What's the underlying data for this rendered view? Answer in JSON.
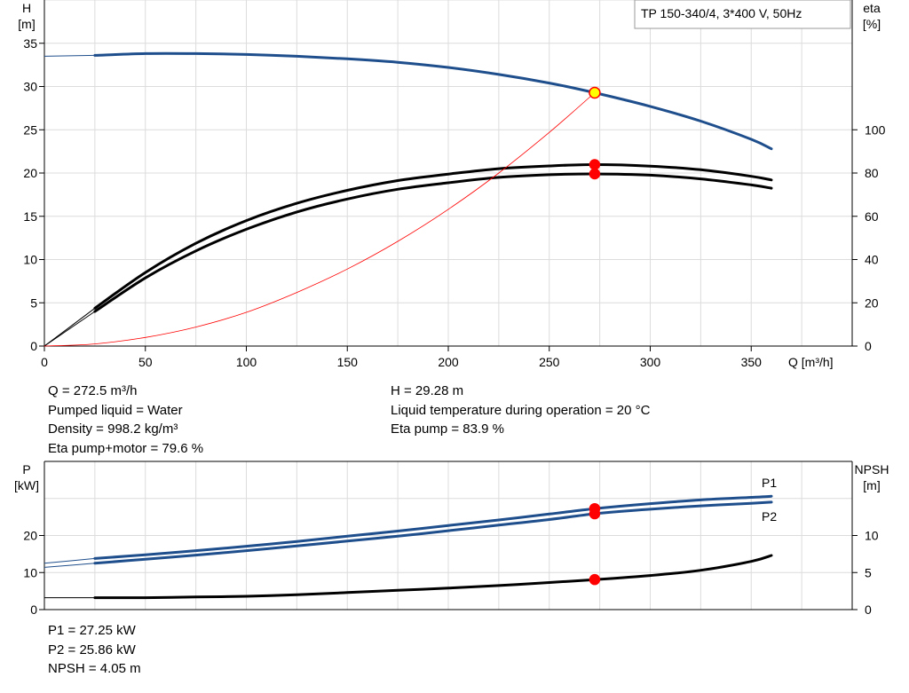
{
  "chart_data": [
    {
      "type": "line",
      "title": "TP 150-340/4, 3*400 V, 50Hz",
      "xlabel": "Q [m³/h]",
      "xlim": [
        0,
        400
      ],
      "x_ticks": [
        0,
        50,
        100,
        150,
        200,
        250,
        300,
        350
      ],
      "y_axes": [
        {
          "label": [
            "H",
            "[m]"
          ],
          "side": "left",
          "ylim": [
            0,
            40
          ],
          "ticks": [
            0,
            5,
            10,
            15,
            20,
            25,
            30,
            35
          ]
        },
        {
          "label": [
            "eta",
            "[%]"
          ],
          "side": "right",
          "ylim": [
            0,
            160
          ],
          "ticks": [
            0,
            20,
            40,
            60,
            80,
            100
          ]
        }
      ],
      "grid": true,
      "series": [
        {
          "axis": "left",
          "color": "#1f4e8c",
          "x": [
            0,
            25,
            50,
            75,
            100,
            125,
            150,
            175,
            200,
            225,
            250,
            272.5,
            300,
            325,
            350,
            360
          ],
          "y": [
            33.5,
            33.6,
            33.8,
            33.8,
            33.7,
            33.5,
            33.2,
            32.8,
            32.2,
            31.4,
            30.4,
            29.28,
            27.7,
            26.0,
            23.9,
            22.8
          ]
        },
        {
          "axis": "right",
          "color": "#000000",
          "x": [
            0,
            25,
            50,
            75,
            100,
            125,
            150,
            175,
            200,
            225,
            250,
            272.5,
            300,
            325,
            350,
            360
          ],
          "y": [
            0,
            17.5,
            34,
            47.5,
            58,
            66,
            72,
            76.5,
            79.5,
            82,
            83.3,
            83.9,
            83.2,
            81.5,
            78.5,
            76.8
          ]
        },
        {
          "axis": "right",
          "color": "#000000",
          "x": [
            0,
            25,
            50,
            75,
            100,
            125,
            150,
            175,
            200,
            225,
            250,
            272.5,
            300,
            325,
            350,
            360
          ],
          "y": [
            0,
            16,
            31.5,
            44,
            54,
            62,
            68,
            72.5,
            75.5,
            78,
            79.2,
            79.6,
            79,
            77.3,
            74.5,
            73
          ]
        },
        {
          "axis": "left",
          "color": "#ff0000",
          "x": [
            0,
            25,
            50,
            75,
            100,
            125,
            150,
            175,
            200,
            225,
            250,
            272.5
          ],
          "y": [
            0,
            0.25,
            1.0,
            2.2,
            3.9,
            6.2,
            8.9,
            12.1,
            15.8,
            20.0,
            24.7,
            29.28
          ]
        }
      ],
      "operating_points": [
        {
          "axis": "left",
          "x": 272.5,
          "y": 29.28,
          "fill": "#ffff00"
        },
        {
          "axis": "right",
          "x": 272.5,
          "y": 83.9,
          "fill": "#ff0000"
        },
        {
          "axis": "right",
          "x": 272.5,
          "y": 79.6,
          "fill": "#ff0000"
        }
      ]
    },
    {
      "type": "line",
      "xlim": [
        0,
        400
      ],
      "y_axes": [
        {
          "label": [
            "P",
            "[kW]"
          ],
          "side": "left",
          "ylim": [
            0,
            40
          ],
          "ticks": [
            0,
            10,
            20
          ]
        },
        {
          "label": [
            "NPSH",
            "[m]"
          ],
          "side": "right",
          "ylim": [
            0,
            20
          ],
          "ticks": [
            0,
            5,
            10
          ]
        }
      ],
      "grid": true,
      "series": [
        {
          "name": "P1",
          "axis": "left",
          "color": "#1f4e8c",
          "x": [
            0,
            25,
            50,
            75,
            100,
            125,
            150,
            175,
            200,
            225,
            250,
            272.5,
            300,
            325,
            350,
            360
          ],
          "y": [
            12.5,
            13.8,
            14.8,
            15.9,
            17.1,
            18.4,
            19.8,
            21.2,
            22.7,
            24.2,
            25.8,
            27.25,
            28.6,
            29.6,
            30.3,
            30.6
          ]
        },
        {
          "name": "P2",
          "axis": "left",
          "color": "#1f4e8c",
          "x": [
            0,
            25,
            50,
            75,
            100,
            125,
            150,
            175,
            200,
            225,
            250,
            272.5,
            300,
            325,
            350,
            360
          ],
          "y": [
            11.4,
            12.5,
            13.6,
            14.7,
            15.9,
            17.2,
            18.5,
            19.8,
            21.3,
            22.8,
            24.3,
            25.86,
            27.1,
            28.0,
            28.7,
            29.0
          ]
        },
        {
          "axis": "right",
          "color": "#000000",
          "x": [
            0,
            25,
            50,
            75,
            100,
            125,
            150,
            175,
            200,
            225,
            250,
            272.5,
            300,
            325,
            350,
            360
          ],
          "y": [
            1.6,
            1.6,
            1.6,
            1.7,
            1.8,
            2.0,
            2.3,
            2.6,
            2.9,
            3.25,
            3.65,
            4.05,
            4.6,
            5.3,
            6.5,
            7.3
          ]
        }
      ],
      "operating_points": [
        {
          "axis": "left",
          "x": 272.5,
          "y": 27.25,
          "fill": "#ff0000"
        },
        {
          "axis": "left",
          "x": 272.5,
          "y": 25.86,
          "fill": "#ff0000"
        },
        {
          "axis": "right",
          "x": 272.5,
          "y": 4.05,
          "fill": "#ff0000"
        }
      ]
    }
  ],
  "info_left": [
    "Q = 272.5 m³/h",
    "Pumped liquid = Water",
    "Density = 998.2 kg/m³",
    "Eta pump+motor = 79.6 %"
  ],
  "info_right": [
    "H = 29.28 m",
    "Liquid temperature during operation = 20 °C",
    "Eta pump = 83.9 %"
  ],
  "power_info": [
    "P1 = 27.25 kW",
    "P2 = 25.86 kW",
    "NPSH = 4.05 m"
  ]
}
